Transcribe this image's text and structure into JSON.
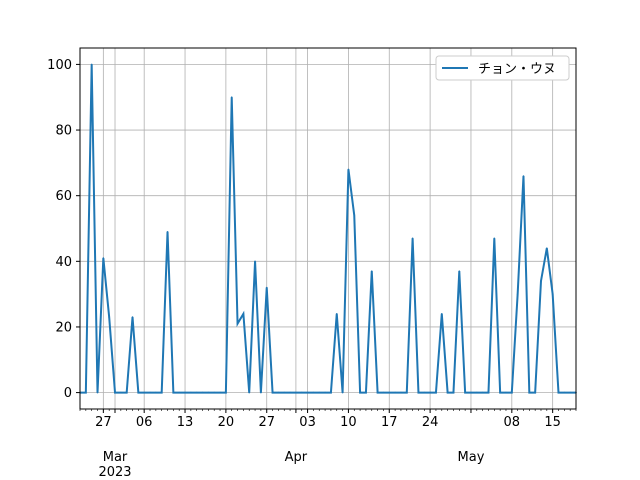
{
  "chart_data": {
    "type": "line",
    "x_type": "date",
    "x_range": [
      "2023-02-23",
      "2023-05-19"
    ],
    "ylim": [
      -5,
      105
    ],
    "y_ticks": [
      0,
      20,
      40,
      60,
      80,
      100
    ],
    "grid": true,
    "legend_position": "top-right",
    "line_color": "#1f77b4",
    "x_ticks": [
      {
        "date": "2023-02-27",
        "label": "27",
        "major": false
      },
      {
        "date": "2023-03-01",
        "label": "Mar",
        "major": true
      },
      {
        "date": "2023-03-06",
        "label": "06",
        "major": false
      },
      {
        "date": "2023-03-13",
        "label": "13",
        "major": false
      },
      {
        "date": "2023-03-20",
        "label": "20",
        "major": false
      },
      {
        "date": "2023-03-27",
        "label": "27",
        "major": false
      },
      {
        "date": "2023-04-01",
        "label": "Apr",
        "major": true
      },
      {
        "date": "2023-04-03",
        "label": "03",
        "major": false
      },
      {
        "date": "2023-04-10",
        "label": "10",
        "major": false
      },
      {
        "date": "2023-04-17",
        "label": "17",
        "major": false
      },
      {
        "date": "2023-04-24",
        "label": "24",
        "major": false
      },
      {
        "date": "2023-05-01",
        "label": "May",
        "major": true
      },
      {
        "date": "2023-05-08",
        "label": "08",
        "major": false
      },
      {
        "date": "2023-05-15",
        "label": "15",
        "major": false
      }
    ],
    "year_label": "2023",
    "series": [
      {
        "name": "チョン・ウヌ",
        "points": [
          [
            "2023-02-23",
            0
          ],
          [
            "2023-02-24",
            0
          ],
          [
            "2023-02-25",
            100
          ],
          [
            "2023-02-26",
            0
          ],
          [
            "2023-02-27",
            41
          ],
          [
            "2023-02-28",
            23
          ],
          [
            "2023-03-01",
            0
          ],
          [
            "2023-03-02",
            0
          ],
          [
            "2023-03-03",
            0
          ],
          [
            "2023-03-04",
            23
          ],
          [
            "2023-03-05",
            0
          ],
          [
            "2023-03-06",
            0
          ],
          [
            "2023-03-07",
            0
          ],
          [
            "2023-03-08",
            0
          ],
          [
            "2023-03-09",
            0
          ],
          [
            "2023-03-10",
            49
          ],
          [
            "2023-03-11",
            0
          ],
          [
            "2023-03-12",
            0
          ],
          [
            "2023-03-13",
            0
          ],
          [
            "2023-03-14",
            0
          ],
          [
            "2023-03-15",
            0
          ],
          [
            "2023-03-16",
            0
          ],
          [
            "2023-03-17",
            0
          ],
          [
            "2023-03-18",
            0
          ],
          [
            "2023-03-19",
            0
          ],
          [
            "2023-03-20",
            0
          ],
          [
            "2023-03-21",
            90
          ],
          [
            "2023-03-22",
            21
          ],
          [
            "2023-03-23",
            24
          ],
          [
            "2023-03-24",
            0
          ],
          [
            "2023-03-25",
            40
          ],
          [
            "2023-03-26",
            0
          ],
          [
            "2023-03-27",
            32
          ],
          [
            "2023-03-28",
            0
          ],
          [
            "2023-03-29",
            0
          ],
          [
            "2023-03-30",
            0
          ],
          [
            "2023-03-31",
            0
          ],
          [
            "2023-04-01",
            0
          ],
          [
            "2023-04-02",
            0
          ],
          [
            "2023-04-03",
            0
          ],
          [
            "2023-04-04",
            0
          ],
          [
            "2023-04-05",
            0
          ],
          [
            "2023-04-06",
            0
          ],
          [
            "2023-04-07",
            0
          ],
          [
            "2023-04-08",
            24
          ],
          [
            "2023-04-09",
            0
          ],
          [
            "2023-04-10",
            68
          ],
          [
            "2023-04-11",
            54
          ],
          [
            "2023-04-12",
            0
          ],
          [
            "2023-04-13",
            0
          ],
          [
            "2023-04-14",
            37
          ],
          [
            "2023-04-15",
            0
          ],
          [
            "2023-04-16",
            0
          ],
          [
            "2023-04-17",
            0
          ],
          [
            "2023-04-18",
            0
          ],
          [
            "2023-04-19",
            0
          ],
          [
            "2023-04-20",
            0
          ],
          [
            "2023-04-21",
            47
          ],
          [
            "2023-04-22",
            0
          ],
          [
            "2023-04-23",
            0
          ],
          [
            "2023-04-24",
            0
          ],
          [
            "2023-04-25",
            0
          ],
          [
            "2023-04-26",
            24
          ],
          [
            "2023-04-27",
            0
          ],
          [
            "2023-04-28",
            0
          ],
          [
            "2023-04-29",
            37
          ],
          [
            "2023-04-30",
            0
          ],
          [
            "2023-05-01",
            0
          ],
          [
            "2023-05-02",
            0
          ],
          [
            "2023-05-03",
            0
          ],
          [
            "2023-05-04",
            0
          ],
          [
            "2023-05-05",
            47
          ],
          [
            "2023-05-06",
            0
          ],
          [
            "2023-05-07",
            0
          ],
          [
            "2023-05-08",
            0
          ],
          [
            "2023-05-09",
            30
          ],
          [
            "2023-05-10",
            66
          ],
          [
            "2023-05-11",
            0
          ],
          [
            "2023-05-12",
            0
          ],
          [
            "2023-05-13",
            34
          ],
          [
            "2023-05-14",
            44
          ],
          [
            "2023-05-15",
            30
          ],
          [
            "2023-05-16",
            0
          ],
          [
            "2023-05-17",
            0
          ],
          [
            "2023-05-18",
            0
          ],
          [
            "2023-05-19",
            0
          ]
        ]
      }
    ]
  }
}
